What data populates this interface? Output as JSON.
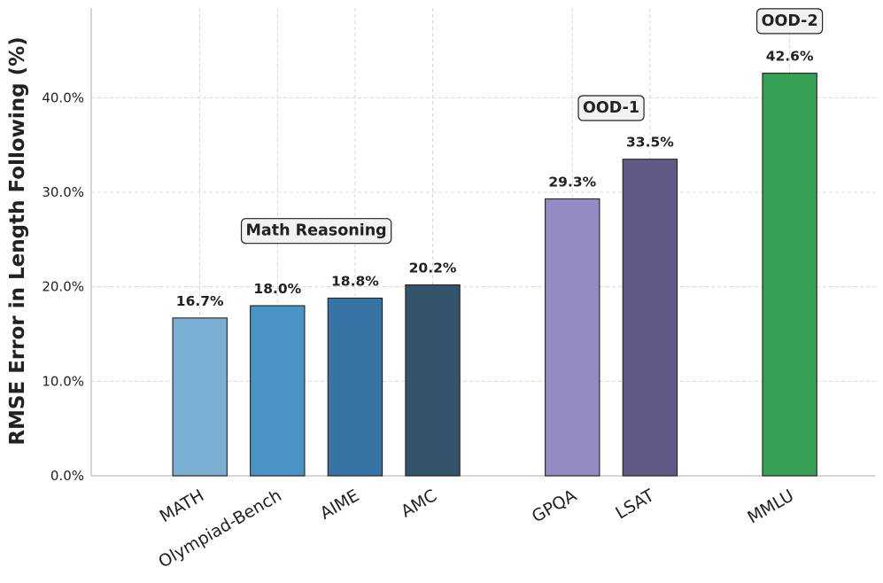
{
  "chart_data": {
    "type": "bar",
    "title": "",
    "xlabel": "",
    "ylabel": "RMSE Error in Length Following (%)",
    "ylim": [
      0,
      49.5
    ],
    "yticks": [
      0,
      10,
      20,
      30,
      40
    ],
    "ytick_labels": [
      "0.0%",
      "10.0%",
      "20.0%",
      "30.0%",
      "40.0%"
    ],
    "grid": true,
    "categories": [
      "MATH",
      "Olympiad-Bench",
      "AIME",
      "AMC",
      "GPQA",
      "LSAT",
      "MMLU"
    ],
    "values": [
      16.7,
      18.0,
      18.8,
      20.2,
      29.3,
      33.5,
      42.6
    ],
    "value_labels": [
      "16.7%",
      "18.0%",
      "18.8%",
      "20.2%",
      "29.3%",
      "33.5%",
      "42.6%"
    ],
    "x_positions": [
      0.5,
      1.5,
      2.5,
      3.5,
      5.3,
      6.3,
      8.1
    ],
    "xlim": [
      -0.9,
      9.2
    ],
    "bar_width": 0.7,
    "colors": [
      "#7bafd4",
      "#4a93c6",
      "#3574a5",
      "#34546b",
      "#938bc2",
      "#615a87",
      "#37a055"
    ],
    "groups": [
      {
        "label": "Math Reasoning",
        "x": 2.0,
        "y": 26.0
      },
      {
        "label": "OOD-1",
        "x": 5.8,
        "y": 39.0
      },
      {
        "label": "OOD-2",
        "x": 8.1,
        "y": 48.2
      }
    ]
  }
}
